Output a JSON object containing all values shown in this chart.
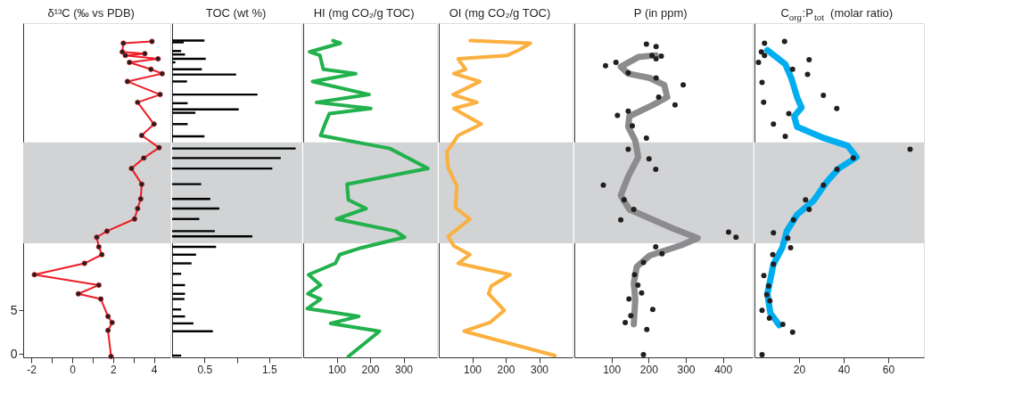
{
  "chart_data": [
    {
      "type": "line",
      "orientation": "horizontal",
      "title": "δ¹³C (‰ vs PDB)",
      "xlim": [
        -2.4,
        4.8
      ],
      "xticks": [
        -2,
        {
          "value": -1,
          "label": null
        },
        0,
        {
          "value": 1,
          "label": null
        },
        2,
        {
          "value": 3,
          "label": null
        },
        4
      ],
      "ylim": [
        -0.4,
        38
      ],
      "yticks": [
        0,
        5
      ],
      "grid": false,
      "bands": [
        {
          "axis": "y",
          "from": 12.7,
          "to": 24.3,
          "color": "#d1d3d4"
        }
      ],
      "series": [
        {
          "color": "#ed1c24",
          "marker": "circle",
          "x": [
            35.9,
            35.7,
            34.7,
            34.5,
            34.3,
            33.9,
            33.5,
            32.7,
            32.2,
            31.3,
            29.8,
            28.9,
            26.4,
            25.1,
            23.7,
            22.5,
            21.3,
            19.5,
            17.8,
            16.7,
            15.5,
            14.1,
            13.4,
            12.3,
            11.4,
            10.4,
            9.1,
            7.9,
            6.9,
            6.3,
            4.3,
            3.6,
            2.7,
            -0.3
          ],
          "values": [
            3.9,
            2.5,
            2.45,
            3.55,
            2.6,
            4.2,
            2.8,
            3.85,
            4.4,
            2.7,
            4.3,
            3.2,
            4.0,
            3.4,
            4.25,
            3.5,
            2.9,
            3.4,
            3.35,
            3.2,
            3.05,
            1.7,
            1.2,
            1.3,
            1.45,
            0.6,
            -1.85,
            1.3,
            0.3,
            1.4,
            1.75,
            1.95,
            1.75,
            1.9
          ]
        }
      ]
    },
    {
      "type": "bar",
      "orientation": "horizontal",
      "title": "TOC (wt %)",
      "xlim": [
        0,
        2.0
      ],
      "xticks": [
        0.5,
        {
          "value": 1,
          "label": null
        },
        1.5
      ],
      "ylim": [
        -0.4,
        38
      ],
      "tick_labels": "x",
      "grid": false,
      "bands": [
        {
          "axis": "y",
          "from": 12.7,
          "to": 24.3,
          "color": "#d1d3d4"
        }
      ],
      "series": [
        {
          "color": "#000000",
          "x": [
            36.0,
            35.8,
            34.8,
            34.4,
            33.9,
            33.5,
            32.7,
            32.1,
            31.3,
            29.8,
            28.8,
            28.1,
            27.7,
            26.4,
            25.0,
            23.6,
            22.5,
            21.3,
            19.5,
            17.8,
            16.7,
            15.5,
            14.1,
            13.5,
            12.3,
            11.4,
            10.4,
            9.2,
            7.9,
            6.9,
            6.3,
            5.1,
            4.3,
            3.5,
            2.6,
            -0.2
          ],
          "values": [
            0.5,
            0.18,
            0.14,
            0.2,
            0.52,
            0.05,
            0.46,
            0.99,
            0.23,
            1.32,
            0.24,
            1.03,
            0.36,
            0.24,
            0.5,
            1.91,
            1.68,
            1.55,
            0.45,
            0.59,
            0.73,
            0.42,
            0.66,
            1.24,
            0.68,
            0.37,
            0.3,
            0.14,
            0.2,
            0.2,
            0.19,
            0.14,
            0.2,
            0.33,
            0.63,
            0.14
          ]
        }
      ]
    },
    {
      "type": "line",
      "orientation": "horizontal",
      "title": "HI (mg CO₂/g TOC)",
      "xlim": [
        0,
        400
      ],
      "xticks": [
        100,
        200,
        300
      ],
      "ylim": [
        -0.4,
        38
      ],
      "tick_labels": "x",
      "grid": false,
      "bands": [
        {
          "axis": "y",
          "from": 12.7,
          "to": 24.3,
          "color": "#d1d3d4"
        }
      ],
      "series": [
        {
          "color": "#22b14c",
          "x": [
            36.0,
            35.7,
            34.7,
            34.3,
            32.7,
            32.2,
            31.3,
            29.8,
            28.9,
            28.2,
            27.6,
            26.4,
            25.1,
            23.6,
            21.3,
            19.5,
            17.7,
            16.7,
            15.5,
            14.1,
            13.4,
            12.2,
            11.4,
            10.4,
            9.1,
            7.9,
            6.9,
            6.3,
            5.2,
            4.3,
            3.5,
            2.6,
            -0.3
          ],
          "values": [
            89,
            111,
            19,
            50,
            60,
            157,
            28,
            197,
            40,
            202,
            78,
            65,
            52,
            259,
            373,
            131,
            135,
            188,
            100,
            276,
            303,
            175,
            109,
            96,
            16,
            52,
            14,
            52,
            12,
            166,
            82,
            228,
            135
          ]
        }
      ]
    },
    {
      "type": "line",
      "orientation": "horizontal",
      "title": "OI (mg CO₂/g TOC)",
      "xlim": [
        0,
        400
      ],
      "xticks": [
        100,
        200,
        300
      ],
      "ylim": [
        -0.4,
        38
      ],
      "tick_labels": "x",
      "grid": false,
      "bands": [
        {
          "axis": "y",
          "from": 12.7,
          "to": 24.3,
          "color": "#d1d3d4"
        }
      ],
      "series": [
        {
          "color": "#fbb040",
          "x": [
            36.0,
            35.7,
            34.9,
            34.3,
            33.9,
            32.7,
            32.2,
            31.3,
            29.8,
            28.9,
            28.2,
            27.6,
            26.4,
            25.1,
            23.2,
            21.4,
            19.3,
            16.8,
            15.5,
            13.5,
            12.4,
            11.4,
            10.4,
            9.1,
            7.8,
            6.9,
            5.0,
            3.6,
            2.6,
            -0.2
          ],
          "values": [
            94,
            274,
            239,
            205,
            58,
            80,
            45,
            123,
            43,
            114,
            45,
            71,
            127,
            58,
            24,
            28,
            54,
            50,
            93,
            28,
            45,
            93,
            58,
            213,
            157,
            149,
            196,
            153,
            76,
            347
          ]
        }
      ]
    },
    {
      "type": "scatter",
      "orientation": "horizontal",
      "title": "P (in ppm)",
      "xlim": [
        0,
        480
      ],
      "xticks": [
        100,
        200,
        300,
        400
      ],
      "ylim": [
        -0.4,
        38
      ],
      "tick_labels": "x",
      "grid": false,
      "bands": [
        {
          "axis": "y",
          "from": 12.7,
          "to": 24.3,
          "color": "#d1d3d4"
        }
      ],
      "series": [
        {
          "type": "line",
          "color": "#8c8c8e",
          "x": [
            34.3,
            34.1,
            33.0,
            32.2,
            31.7,
            30.9,
            29.5,
            28.6,
            27.3,
            26.1,
            24.5,
            22.6,
            20.4,
            18.2,
            16.6,
            14.4,
            13.3,
            12.5,
            11.3,
            10.0,
            8.1,
            6.3,
            3.4
          ],
          "values": [
            219,
            172,
            125,
            145,
            203,
            242,
            250,
            211,
            148,
            145,
            164,
            172,
            145,
            125,
            148,
            266,
            332,
            289,
            203,
            168,
            160,
            164,
            160
          ]
        },
        {
          "type": "scatter",
          "color": "#231f20",
          "x": [
            35.6,
            35.3,
            34.3,
            34.2,
            33.9,
            33.1,
            33.5,
            32.3,
            31.7,
            30.9,
            29.5,
            28.6,
            27.9,
            27.4,
            26.2,
            24.8,
            23.5,
            22.4,
            21.2,
            19.4,
            17.7,
            16.6,
            15.4,
            14.0,
            13.4,
            12.3,
            11.5,
            10.5,
            9.1,
            7.9,
            7.0,
            6.3,
            5.1,
            4.4,
            3.6,
            2.8,
            -0.1
          ],
          "values": [
            194,
            220,
            209,
            234,
            220,
            84,
            112,
            145,
            220,
            293,
            227,
            271,
            145,
            116,
            156,
            194,
            145,
            201,
            219,
            78,
            134,
            160,
            125,
            415,
            435,
            219,
            236,
            186,
            162,
            171,
            181,
            147,
            211,
            152,
            137,
            195,
            186
          ]
        }
      ]
    },
    {
      "type": "scatter",
      "orientation": "horizontal",
      "title": "C$_{org}$:P$_{tot}$ (molar ratio)",
      "xlim": [
        0,
        76
      ],
      "xticks": [
        20,
        40,
        60
      ],
      "ylim": [
        -0.4,
        38
      ],
      "tick_labels": "x",
      "grid": false,
      "bands": [
        {
          "axis": "y",
          "from": 12.7,
          "to": 24.3,
          "color": "#d1d3d4"
        }
      ],
      "series": [
        {
          "type": "line",
          "color": "#00aeef",
          "x": [
            34.9,
            33.3,
            31.7,
            29.5,
            28.3,
            27.3,
            26.1,
            24.8,
            23.9,
            22.6,
            21.3,
            19.8,
            17.6,
            16.0,
            14.1,
            12.2,
            10.3,
            6.9,
            4.7,
            3.3
          ],
          "values": [
            5.8,
            13.8,
            16.5,
            19.1,
            21.1,
            17.8,
            19.1,
            31.1,
            41.8,
            45.8,
            37.8,
            32.5,
            26.5,
            19.1,
            14.5,
            12.5,
            8.5,
            5.8,
            7.1,
            11.1
          ]
        },
        {
          "type": "scatter",
          "color": "#231f20",
          "x": [
            35.7,
            35.9,
            34.7,
            34.3,
            33.5,
            33.8,
            32.7,
            32.1,
            31.2,
            29.7,
            28.9,
            28.2,
            27.6,
            26.4,
            25.0,
            23.5,
            22.5,
            21.2,
            19.4,
            17.7,
            16.6,
            15.4,
            13.9,
            13.3,
            12.2,
            11.4,
            10.3,
            9.0,
            7.8,
            6.8,
            6.1,
            5.0,
            4.1,
            3.4,
            2.5,
            -0.1
          ],
          "values": [
            4.5,
            13.5,
            3.1,
            4.5,
            1.8,
            24.5,
            17.1,
            23.8,
            3.4,
            30.9,
            4.1,
            36.9,
            15.4,
            8.5,
            13.8,
            69.8,
            44.3,
            37.0,
            30.9,
            22.9,
            24.5,
            17.5,
            8.5,
            14.9,
            16.2,
            8.2,
            8.5,
            4.2,
            6.3,
            5.5,
            6.9,
            3.4,
            6.7,
            12.7,
            17.1,
            3.4
          ]
        }
      ]
    }
  ]
}
